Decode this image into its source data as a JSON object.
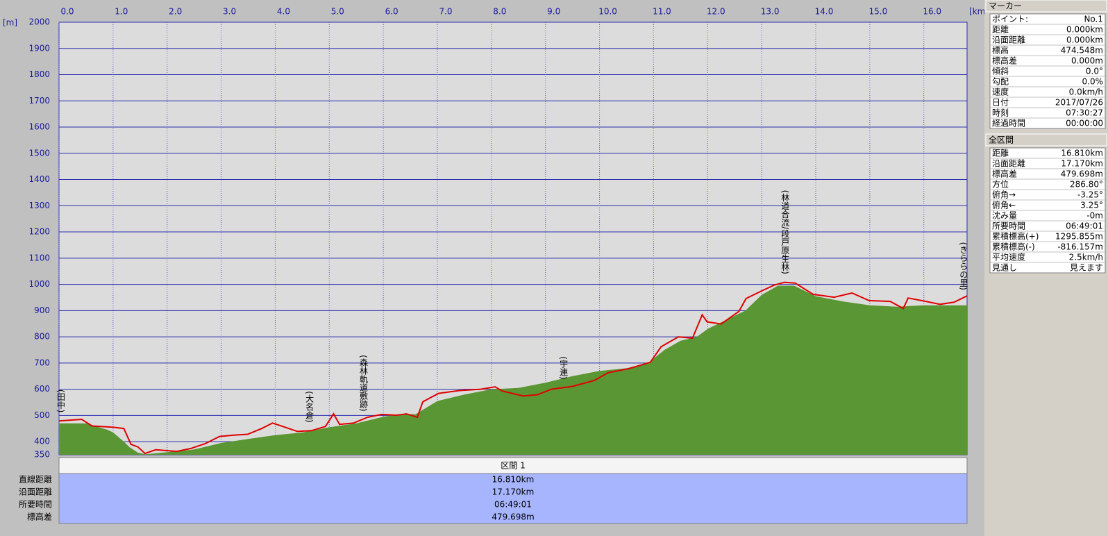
{
  "chart_data": {
    "type": "area-line",
    "xlabel": "[km]",
    "ylabel": "[m]",
    "xlim": [
      0,
      16.8
    ],
    "ylim": [
      350,
      2000
    ],
    "xticks": [
      {
        "value": 0,
        "label": "0.0"
      },
      {
        "value": 1,
        "label": "1.0"
      },
      {
        "value": 2,
        "label": "2.0"
      },
      {
        "value": 3,
        "label": "3.0"
      },
      {
        "value": 4,
        "label": "4.0"
      },
      {
        "value": 5,
        "label": "5.0"
      },
      {
        "value": 6,
        "label": "6.0"
      },
      {
        "value": 7,
        "label": "7.0"
      },
      {
        "value": 8,
        "label": "8.0"
      },
      {
        "value": 9,
        "label": "9.0"
      },
      {
        "value": 10,
        "label": "10.0"
      },
      {
        "value": 11,
        "label": "11.0"
      },
      {
        "value": 12,
        "label": "12.0"
      },
      {
        "value": 13,
        "label": "13.0"
      },
      {
        "value": 14,
        "label": "14.0"
      },
      {
        "value": 15,
        "label": "15.0"
      },
      {
        "value": 16,
        "label": "16.0"
      }
    ],
    "yticks": [
      350,
      400,
      500,
      600,
      700,
      800,
      900,
      1000,
      1100,
      1200,
      1300,
      1400,
      1500,
      1600,
      1700,
      1800,
      1900,
      2000
    ],
    "grid": true,
    "series": [
      {
        "color": "#5b9634",
        "fill": true,
        "x": [
          0,
          0.5,
          0.9,
          1.0,
          1.2,
          1.3,
          1.46,
          1.6,
          2.0,
          2.5,
          3.0,
          3.5,
          4.0,
          4.5,
          5.0,
          5.5,
          6.0,
          6.3,
          6.6,
          6.8,
          7.0,
          7.5,
          8.0,
          8.5,
          9.0,
          9.5,
          10.0,
          10.5,
          10.9,
          11.2,
          11.5,
          11.8,
          12.0,
          12.3,
          12.7,
          13.0,
          13.3,
          13.6,
          14.0,
          14.5,
          15.0,
          15.5,
          16.0,
          16.8
        ],
        "values": [
          470,
          470,
          445,
          435,
          400,
          380,
          358,
          352,
          360,
          370,
          395,
          410,
          425,
          435,
          455,
          470,
          495,
          505,
          505,
          530,
          555,
          580,
          600,
          605,
          625,
          650,
          670,
          680,
          700,
          750,
          785,
          800,
          830,
          860,
          900,
          960,
          995,
          995,
          955,
          935,
          920,
          915,
          920,
          920
        ]
      },
      {
        "color": "#e00000",
        "fill": false,
        "x": [
          0,
          0.42,
          0.61,
          1.01,
          1.2,
          1.33,
          1.46,
          1.59,
          1.79,
          2.18,
          2.44,
          2.71,
          2.97,
          3.23,
          3.49,
          3.75,
          3.95,
          4.14,
          4.41,
          4.67,
          4.93,
          5.08,
          5.19,
          5.45,
          5.71,
          5.97,
          6.24,
          6.43,
          6.63,
          6.73,
          7.02,
          7.41,
          7.8,
          8.07,
          8.2,
          8.59,
          8.85,
          9.11,
          9.5,
          9.9,
          10.16,
          10.55,
          10.94,
          11.14,
          11.46,
          11.72,
          11.9,
          11.99,
          12.25,
          12.58,
          12.71,
          13.03,
          13.23,
          13.42,
          13.62,
          13.95,
          14.34,
          14.67,
          14.99,
          15.38,
          15.62,
          15.71,
          16.04,
          16.3,
          16.56,
          16.8
        ],
        "values": [
          479,
          485,
          460,
          455,
          450,
          390,
          380,
          355,
          369,
          363,
          374,
          393,
          420,
          425,
          428,
          450,
          471,
          458,
          439,
          442,
          458,
          506,
          466,
          471,
          493,
          504,
          501,
          506,
          493,
          552,
          584,
          595,
          600,
          609,
          593,
          574,
          579,
          600,
          611,
          633,
          663,
          679,
          703,
          762,
          800,
          795,
          884,
          857,
          849,
          897,
          946,
          978,
          997,
          1008,
          1005,
          962,
          951,
          967,
          938,
          935,
          908,
          948,
          935,
          924,
          932,
          956
        ]
      }
    ],
    "annotations": [
      {
        "text": "(田中)",
        "x": 0
      },
      {
        "text": "(大名倉)",
        "x": 4.6
      },
      {
        "text": "(森林軌道敷跡)",
        "x": 5.6
      },
      {
        "text": "(宇連)",
        "x": 9.3
      },
      {
        "text": "(林道合流/段戸原生林)",
        "x": 13.4
      },
      {
        "text": "(きららの里)",
        "x": 16.7
      }
    ]
  },
  "marker": {
    "title": "マーカー",
    "rows": [
      [
        "ポイント:",
        "No.1"
      ],
      [
        "距離",
        "0.000km"
      ],
      [
        "沿面距離",
        "0.000km"
      ],
      [
        "標高",
        "474.548m"
      ],
      [
        "標高差",
        "0.000m"
      ],
      [
        "傾斜",
        "0.0°"
      ],
      [
        "勾配",
        "0.0%"
      ],
      [
        "速度",
        "0.0km/h"
      ],
      [
        "日付",
        "2017/07/26"
      ],
      [
        "時刻",
        "07:30:27"
      ],
      [
        "経過時間",
        "00:00:00"
      ]
    ]
  },
  "total": {
    "title": "全区間",
    "rows": [
      [
        "距離",
        "16.810km"
      ],
      [
        "沿面距離",
        "17.170km"
      ],
      [
        "標高差",
        "479.698m"
      ],
      [
        "方位",
        "286.80°"
      ],
      [
        "俯角→",
        "-3.25°"
      ],
      [
        "俯角←",
        "3.25°"
      ],
      [
        "沈み量",
        "-0m"
      ],
      [
        "所要時間",
        "06:49:01"
      ],
      [
        "累積標高(+)",
        "1295.855m"
      ],
      [
        "累積標高(-)",
        "-816.157m"
      ],
      [
        "平均速度",
        "2.5km/h"
      ],
      [
        "見通し",
        "見えます"
      ]
    ]
  },
  "section": {
    "title": "区間 1",
    "rows": [
      [
        "直線距離",
        "16.810km"
      ],
      [
        "沿面距離",
        "17.170km"
      ],
      [
        "所要時間",
        "06:49:01"
      ],
      [
        "標高差",
        "479.698m"
      ]
    ]
  }
}
